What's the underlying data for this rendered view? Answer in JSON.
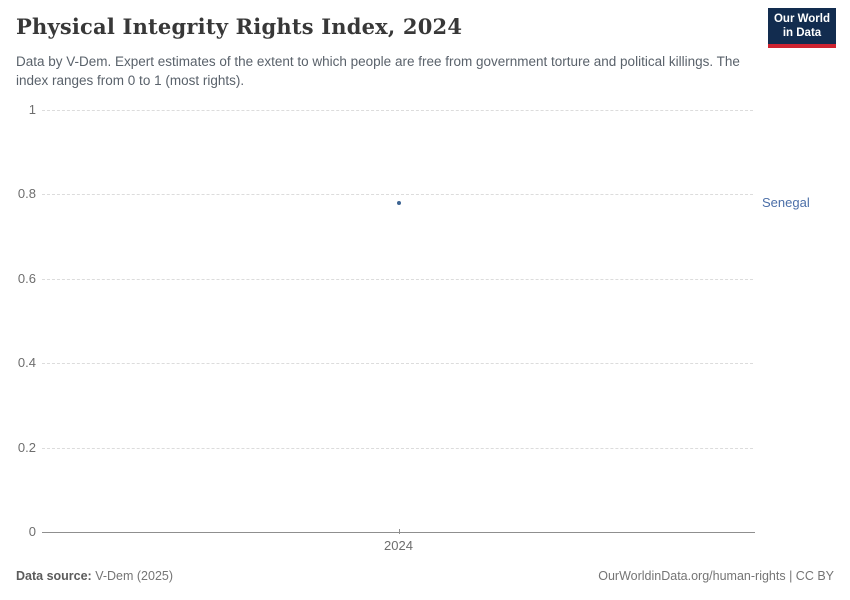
{
  "header": {
    "title": "Physical Integrity Rights Index, 2024",
    "subtitle": "Data by V-Dem. Expert estimates of the extent to which people are free from government torture and political killings. The index ranges from 0 to 1 (most rights).",
    "logo": {
      "line1": "Our World",
      "line2": "in Data"
    }
  },
  "chart_data": {
    "type": "scatter",
    "series": [
      {
        "name": "Senegal",
        "x": [
          2024
        ],
        "values": [
          0.78
        ],
        "color": "#4c6fa8",
        "dot_color": "#3d6492"
      }
    ],
    "title": "Physical Integrity Rights Index, 2024",
    "xlabel": "",
    "ylabel": "",
    "xlim": [
      2023.5,
      2024.5
    ],
    "ylim": [
      0,
      1
    ],
    "yticks": [
      0,
      0.2,
      0.4,
      0.6,
      0.8,
      1
    ],
    "xticks": [
      2024
    ],
    "grid": "horizontal-dashed",
    "legend_position": "right-of-point"
  },
  "footer": {
    "source_label": "Data source:",
    "source_value": " V-Dem (2025)",
    "credit": "OurWorldinData.org/human-rights | CC BY"
  },
  "colors": {
    "logo_navy": "#122c4f",
    "logo_red": "#ce2330",
    "series_blue": "#4c6fa8",
    "gridline": "#dcdcdc",
    "axis": "#8f8f8f"
  }
}
